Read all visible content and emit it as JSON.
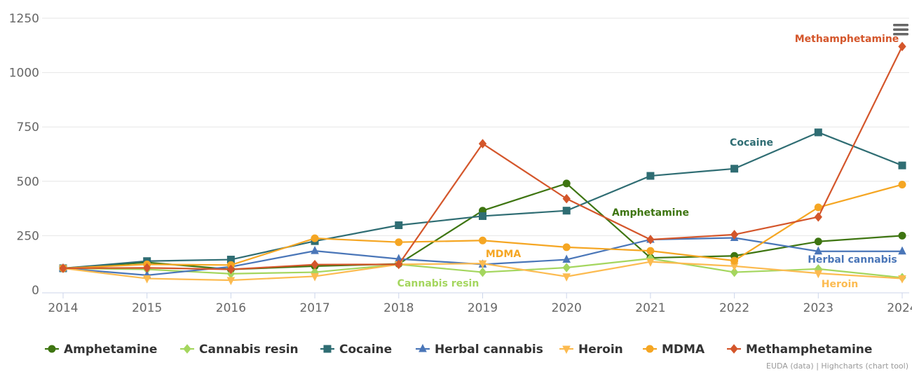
{
  "chart_data": {
    "type": "line",
    "categories": [
      "2014",
      "2015",
      "2016",
      "2017",
      "2018",
      "2019",
      "2020",
      "2021",
      "2022",
      "2023",
      "2024"
    ],
    "ylim": [
      0,
      1250
    ],
    "yticks": [
      0,
      250,
      500,
      750,
      1000,
      1250
    ],
    "grid": true,
    "legend_position": "bottom",
    "series": [
      {
        "name": "Amphetamine",
        "color": "#3e7511",
        "marker": "circle",
        "values": [
          100,
          127,
          95,
          110,
          120,
          365,
          490,
          148,
          157,
          223,
          250
        ]
      },
      {
        "name": "Cannabis resin",
        "color": "#a4d65e",
        "marker": "diamond",
        "values": [
          100,
          95,
          75,
          82,
          118,
          82,
          103,
          145,
          82,
          97,
          57
        ]
      },
      {
        "name": "Cocaine",
        "color": "#2f6d73",
        "marker": "square",
        "values": [
          100,
          133,
          140,
          225,
          298,
          340,
          365,
          525,
          558,
          725,
          573
        ]
      },
      {
        "name": "Herbal cannabis",
        "color": "#4a76b8",
        "marker": "triangle",
        "values": [
          100,
          68,
          107,
          180,
          143,
          118,
          140,
          232,
          240,
          178,
          178
        ]
      },
      {
        "name": "Heroin",
        "color": "#fcbb50",
        "marker": "triangle-down",
        "values": [
          100,
          53,
          45,
          63,
          118,
          122,
          62,
          130,
          110,
          77,
          53
        ]
      },
      {
        "name": "MDMA",
        "color": "#f5a623",
        "marker": "circle",
        "values": [
          100,
          118,
          115,
          238,
          220,
          228,
          197,
          180,
          135,
          380,
          485
        ]
      },
      {
        "name": "Methamphetamine",
        "color": "#d4562b",
        "marker": "diamond",
        "values": [
          100,
          102,
          95,
          117,
          118,
          673,
          420,
          232,
          255,
          336,
          1120
        ]
      }
    ],
    "annotations": [
      {
        "text": "Methamphetamine",
        "series": "Methamphetamine"
      },
      {
        "text": "Cocaine",
        "series": "Cocaine"
      },
      {
        "text": "Amphetamine",
        "series": "Amphetamine"
      },
      {
        "text": "MDMA",
        "series": "MDMA"
      },
      {
        "text": "Herbal cannabis",
        "series": "Herbal cannabis"
      },
      {
        "text": "Cannabis resin",
        "series": "Cannabis resin"
      },
      {
        "text": "Heroin",
        "series": "Heroin"
      }
    ]
  },
  "credits": "EUDA (data) | Highcharts (chart tool)",
  "menu": {
    "icon": "hamburger-menu-icon"
  }
}
